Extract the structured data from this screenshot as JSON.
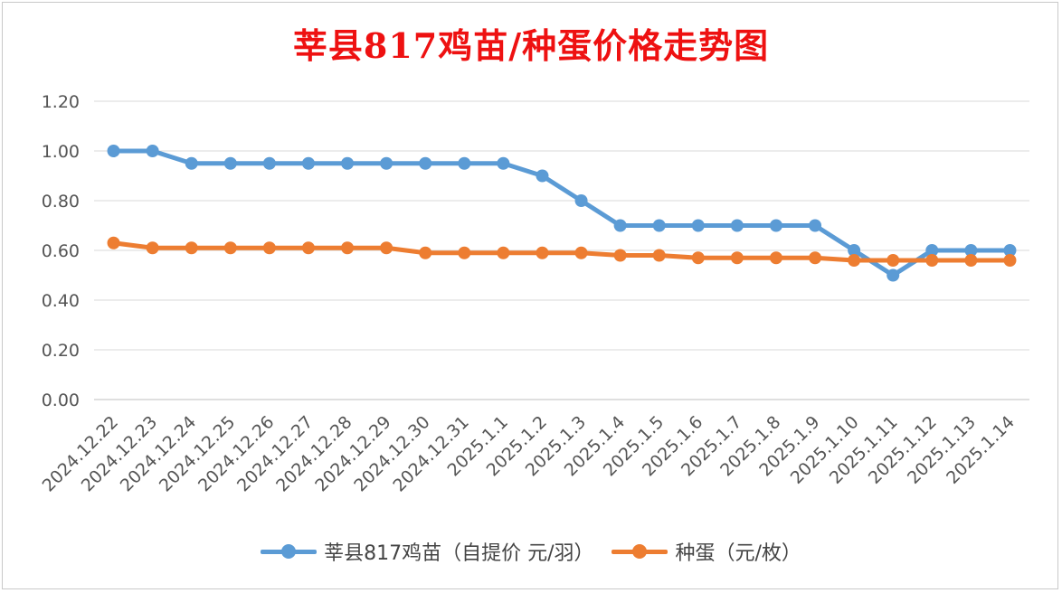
{
  "chart_data": {
    "type": "line",
    "title": "莘县817鸡苗/种蛋价格走势图",
    "categories": [
      "2024.12.22",
      "2024.12.23",
      "2024.12.24",
      "2024.12.25",
      "2024.12.26",
      "2024.12.27",
      "2024.12.28",
      "2024.12.29",
      "2024.12.30",
      "2024.12.31",
      "2025.1.1",
      "2025.1.2",
      "2025.1.3",
      "2025.1.4",
      "2025.1.5",
      "2025.1.6",
      "2025.1.7",
      "2025.1.8",
      "2025.1.9",
      "2025.1.10",
      "2025.1.11",
      "2025.1.12",
      "2025.1.13",
      "2025.1.14"
    ],
    "series": [
      {
        "name": "莘县817鸡苗（自提价 元/羽）",
        "color": "#5b9bd5",
        "values": [
          1.0,
          1.0,
          0.95,
          0.95,
          0.95,
          0.95,
          0.95,
          0.95,
          0.95,
          0.95,
          0.95,
          0.9,
          0.8,
          0.7,
          0.7,
          0.7,
          0.7,
          0.7,
          0.7,
          0.6,
          0.5,
          0.6,
          0.6,
          0.6
        ]
      },
      {
        "name": "种蛋（元/枚）",
        "color": "#ed7d31",
        "values": [
          0.63,
          0.61,
          0.61,
          0.61,
          0.61,
          0.61,
          0.61,
          0.61,
          0.59,
          0.59,
          0.59,
          0.59,
          0.59,
          0.58,
          0.58,
          0.57,
          0.57,
          0.57,
          0.57,
          0.56,
          0.56,
          0.56,
          0.56,
          0.56
        ]
      }
    ],
    "yticks": [
      "0.00",
      "0.20",
      "0.40",
      "0.60",
      "0.80",
      "1.00",
      "1.20"
    ],
    "ylim": [
      0,
      1.2
    ],
    "grid": true,
    "legend": "bottom"
  }
}
